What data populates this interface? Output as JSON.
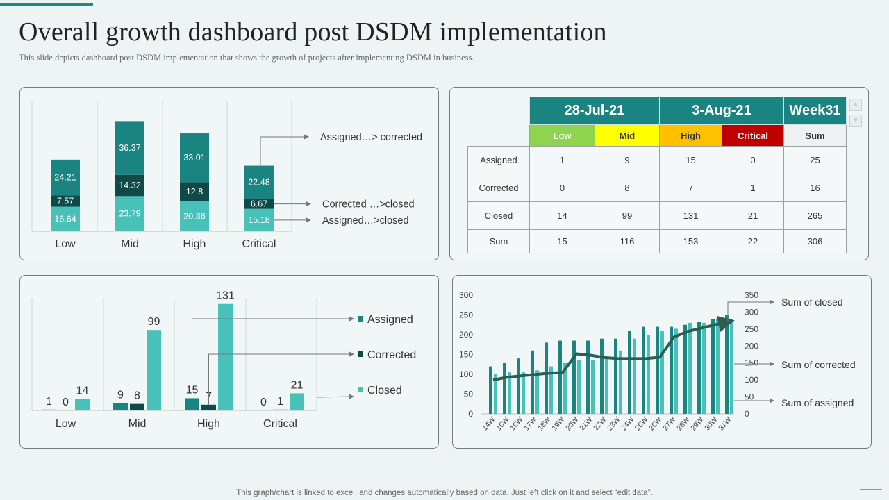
{
  "header": {
    "title": "Overall growth dashboard post DSDM implementation",
    "subtitle": "This slide depicts dashboard post DSDM implementation  that shows the growth of projects after implementing  DSDM in business."
  },
  "footer": {
    "note": "This graph/chart is linked to excel,  and changes automatically based on data. Just left click on it and select “edit data”."
  },
  "colors": {
    "assigned_corrected": "#1a8480",
    "corrected_closed": "#0f4a49",
    "assigned_closed": "#48c2b9",
    "panel_border": "#6f7f7f",
    "table_header": "#1a8480"
  },
  "table": {
    "headers": [
      "28-Jul-21",
      "3-Aug-21",
      "Week31"
    ],
    "subheaders": [
      "Low",
      "Mid",
      "High",
      "Critical",
      "Sum"
    ],
    "rows": [
      {
        "label": "Assigned",
        "values": [
          "1",
          "9",
          "15",
          "0",
          "25"
        ]
      },
      {
        "label": "Corrected",
        "values": [
          "0",
          "8",
          "7",
          "1",
          "16"
        ]
      },
      {
        "label": "Closed",
        "values": [
          "14",
          "99",
          "131",
          "21",
          "265"
        ]
      },
      {
        "label": "Sum",
        "values": [
          "15",
          "116",
          "153",
          "22",
          "306"
        ]
      }
    ],
    "scroll_up": "▲",
    "scroll_down": "▼"
  },
  "chart_data": [
    {
      "type": "bar",
      "stacked": true,
      "categories": [
        "Low",
        "Mid",
        "High",
        "Critical"
      ],
      "series": [
        {
          "name": "Assigned...>closed",
          "values": [
            16.64,
            23.79,
            20.36,
            15.18
          ]
        },
        {
          "name": "Corrected ...>closed",
          "values": [
            7.57,
            14.32,
            12.8,
            6.67
          ]
        },
        {
          "name": "Assigned...> corrected",
          "values": [
            24.21,
            36.37,
            33.01,
            22.48
          ]
        }
      ],
      "value_labels": [
        [
          "16.64",
          "23.79",
          "20.36",
          "15.18"
        ],
        [
          "7.57",
          "14.32",
          "12.8",
          "6.67"
        ],
        [
          "24.21",
          "36.37",
          "33.01",
          "22.48"
        ]
      ],
      "legend_labels": [
        "Assigned…> corrected",
        "Corrected …>closed",
        "Assigned…>closed"
      ],
      "ylim": [
        0,
        80
      ]
    },
    {
      "type": "bar",
      "categories": [
        "Low",
        "Mid",
        "High",
        "Critical"
      ],
      "series": [
        {
          "name": "Assigned",
          "values": [
            1,
            9,
            15,
            0
          ]
        },
        {
          "name": "Corrected",
          "values": [
            0,
            8,
            7,
            1
          ]
        },
        {
          "name": "Closed",
          "values": [
            14,
            99,
            131,
            21
          ]
        }
      ],
      "legend_labels": [
        "Assigned",
        "Corrected",
        "Closed"
      ],
      "ylim": [
        0,
        140
      ]
    },
    {
      "type": "bar+line",
      "x": [
        "14W",
        "15W",
        "16W",
        "17W",
        "18W",
        "19W",
        "20W",
        "21W",
        "22W",
        "23W",
        "24W",
        "25W",
        "26W",
        "27W",
        "28W",
        "29W",
        "30W",
        "31W"
      ],
      "series": [
        {
          "name": "Sum of assigned",
          "axis": "left",
          "values": [
            120,
            130,
            140,
            160,
            180,
            185,
            185,
            185,
            190,
            190,
            210,
            220,
            220,
            220,
            225,
            232,
            240,
            250
          ]
        },
        {
          "name": "Sum of corrected",
          "axis": "left",
          "values": [
            100,
            105,
            105,
            110,
            120,
            130,
            135,
            135,
            145,
            160,
            190,
            200,
            210,
            215,
            230,
            230,
            240,
            240
          ]
        },
        {
          "name": "Sum of closed",
          "axis": "right",
          "type": "line",
          "values": [
            100,
            108,
            112,
            116,
            120,
            122,
            177,
            173,
            166,
            163,
            163,
            163,
            167,
            226,
            243,
            253,
            263,
            272
          ]
        }
      ],
      "left_ylim": [
        0,
        300
      ],
      "right_ylim": [
        0,
        350
      ],
      "left_ticks": [
        "0",
        "50",
        "100",
        "150",
        "200",
        "250",
        "300"
      ],
      "right_ticks": [
        "0",
        "50",
        "100",
        "150",
        "200",
        "250",
        "300",
        "350"
      ],
      "legend_labels": [
        "Sum of closed",
        "Sum of corrected",
        "Sum of assigned"
      ]
    }
  ]
}
